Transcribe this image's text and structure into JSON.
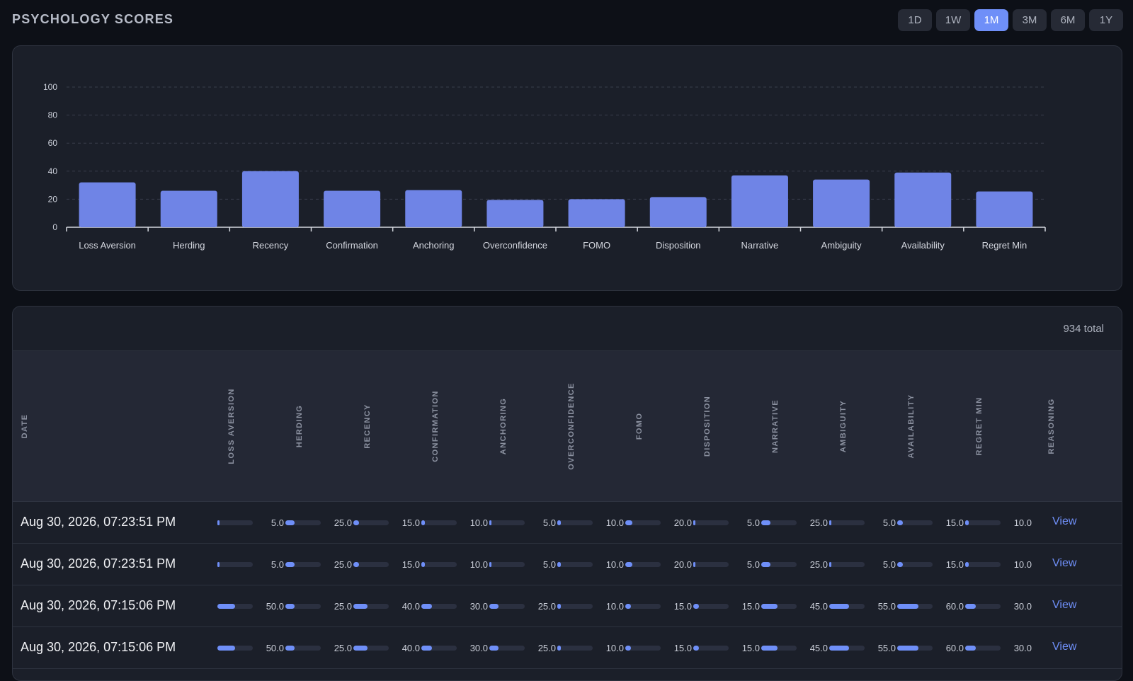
{
  "page": {
    "title": "PSYCHOLOGY SCORES"
  },
  "ranges": {
    "options": [
      "1D",
      "1W",
      "1M",
      "3M",
      "6M",
      "1Y"
    ],
    "selected": "1M",
    "active_color": "#6f8ff8"
  },
  "chart_data": {
    "type": "bar",
    "categories": [
      "Loss Aversion",
      "Herding",
      "Recency",
      "Confirmation",
      "Anchoring",
      "Overconfidence",
      "FOMO",
      "Disposition",
      "Narrative",
      "Ambiguity",
      "Availability",
      "Regret Min"
    ],
    "values": [
      32,
      26,
      40,
      26,
      26.5,
      19.5,
      20,
      21.5,
      37,
      34,
      39,
      25.5
    ],
    "yticks": [
      "0",
      "20",
      "40",
      "60",
      "80",
      "100"
    ],
    "ylim": [
      0,
      100
    ],
    "grid": true,
    "bar_color": "#6f84e6"
  },
  "table": {
    "total_label": "934 total",
    "columns": {
      "date": "DATE",
      "scores": [
        "LOSS AVERSION",
        "HERDING",
        "RECENCY",
        "CONFIRMATION",
        "ANCHORING",
        "OVERCONFIDENCE",
        "FOMO",
        "DISPOSITION",
        "NARRATIVE",
        "AMBIGUITY",
        "AVAILABILITY",
        "REGRET MIN"
      ],
      "reasoning": "REASONING"
    },
    "link_label": "View",
    "rows": [
      {
        "date": "Aug 30, 2026, 07:23:51 PM",
        "scores": [
          "5.0",
          "25.0",
          "15.0",
          "10.0",
          "5.0",
          "10.0",
          "20.0",
          "5.0",
          "25.0",
          "5.0",
          "15.0",
          "10.0"
        ],
        "link": "View"
      },
      {
        "date": "Aug 30, 2026, 07:23:51 PM",
        "scores": [
          "5.0",
          "25.0",
          "15.0",
          "10.0",
          "5.0",
          "10.0",
          "20.0",
          "5.0",
          "25.0",
          "5.0",
          "15.0",
          "10.0"
        ],
        "link": "View"
      },
      {
        "date": "Aug 30, 2026, 07:15:06 PM",
        "scores": [
          "50.0",
          "25.0",
          "40.0",
          "30.0",
          "25.0",
          "10.0",
          "15.0",
          "15.0",
          "45.0",
          "55.0",
          "60.0",
          "30.0"
        ],
        "link": "View"
      },
      {
        "date": "Aug 30, 2026, 07:15:06 PM",
        "scores": [
          "50.0",
          "25.0",
          "40.0",
          "30.0",
          "25.0",
          "10.0",
          "15.0",
          "15.0",
          "45.0",
          "55.0",
          "60.0",
          "30.0"
        ],
        "link": "View"
      }
    ]
  }
}
